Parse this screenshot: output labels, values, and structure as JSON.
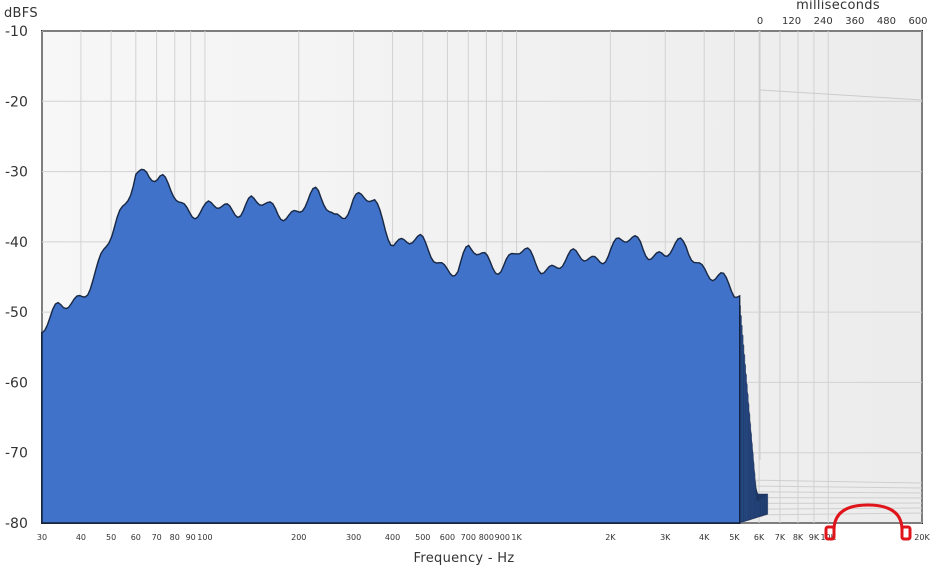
{
  "chart_data": {
    "type": "waterfall",
    "title": "",
    "ylabel": "dBFS",
    "xlabel": "Frequency - Hz",
    "zlabel": "milliseconds",
    "x_scale": "log",
    "xlim": [
      30,
      20000
    ],
    "ylim": [
      -80,
      -10
    ],
    "zlim": [
      0,
      600
    ],
    "y_ticks": [
      "-10",
      "-20",
      "-30",
      "-40",
      "-50",
      "-60",
      "-70",
      "-80"
    ],
    "x_ticks": [
      {
        "label": "30",
        "value": 30
      },
      {
        "label": "40",
        "value": 40
      },
      {
        "label": "50",
        "value": 50
      },
      {
        "label": "60",
        "value": 60
      },
      {
        "label": "70",
        "value": 70
      },
      {
        "label": "80",
        "value": 80
      },
      {
        "label": "90",
        "value": 90
      },
      {
        "label": "100",
        "value": 100
      },
      {
        "label": "200",
        "value": 200
      },
      {
        "label": "300",
        "value": 300
      },
      {
        "label": "400",
        "value": 400
      },
      {
        "label": "500",
        "value": 500
      },
      {
        "label": "600",
        "value": 600
      },
      {
        "label": "700",
        "value": 700
      },
      {
        "label": "800",
        "value": 800
      },
      {
        "label": "900",
        "value": 900
      },
      {
        "label": "1K",
        "value": 1000
      },
      {
        "label": "2K",
        "value": 2000
      },
      {
        "label": "3K",
        "value": 3000
      },
      {
        "label": "4K",
        "value": 4000
      },
      {
        "label": "5K",
        "value": 5000
      },
      {
        "label": "6K",
        "value": 6000
      },
      {
        "label": "7K",
        "value": 7000
      },
      {
        "label": "8K",
        "value": 8000
      },
      {
        "label": "9K",
        "value": 9000
      },
      {
        "label": "10K",
        "value": 10000
      },
      {
        "label": "20K",
        "value": 20000
      }
    ],
    "z_ticks": [
      "0",
      "120",
      "240",
      "360",
      "480",
      "600"
    ],
    "series_color": "#3f72c8",
    "grid": true,
    "initial_response": {
      "frequency_hz": [
        30,
        35,
        40,
        45,
        50,
        55,
        60,
        65,
        70,
        80,
        90,
        100,
        120,
        140,
        160,
        200,
        230,
        260,
        300,
        350,
        400,
        450,
        500,
        550,
        600,
        650,
        700,
        800,
        900,
        1000,
        1200,
        1500,
        2000,
        2500,
        3000,
        3500,
        4000,
        5000
      ],
      "dbfs": [
        -52,
        -50,
        -47,
        -44,
        -40,
        -35,
        -29,
        -30,
        -32,
        -33,
        -35,
        -36,
        -35,
        -34,
        -36,
        -35,
        -34,
        -36,
        -34,
        -35,
        -39,
        -40,
        -41,
        -42,
        -43,
        -44,
        -42,
        -42,
        -43,
        -42,
        -43,
        -43,
        -41,
        -40,
        -42,
        -41,
        -43,
        -48
      ]
    }
  }
}
